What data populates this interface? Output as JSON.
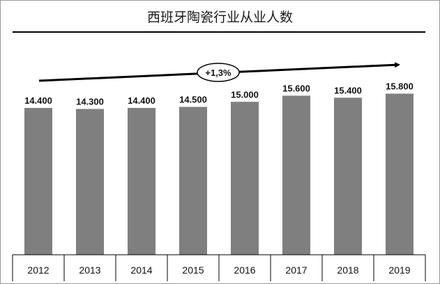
{
  "chart_data": {
    "type": "bar",
    "title": "西班牙陶瓷行业从业人数",
    "categories": [
      "2012",
      "2013",
      "2014",
      "2015",
      "2016",
      "2017",
      "2018",
      "2019"
    ],
    "values": [
      14400,
      14300,
      14400,
      14500,
      15000,
      15600,
      15400,
      15800
    ],
    "value_labels": [
      "14.400",
      "14.300",
      "14.400",
      "14.500",
      "15.000",
      "15.600",
      "15.400",
      "15.800"
    ],
    "ylim": [
      0,
      18000
    ],
    "xlabel": "",
    "ylabel": "",
    "grid": false,
    "legend": "none",
    "bar_color": "#7f7f7f",
    "annotation": {
      "text": "+1,3%",
      "kind": "trend-arrow"
    }
  }
}
